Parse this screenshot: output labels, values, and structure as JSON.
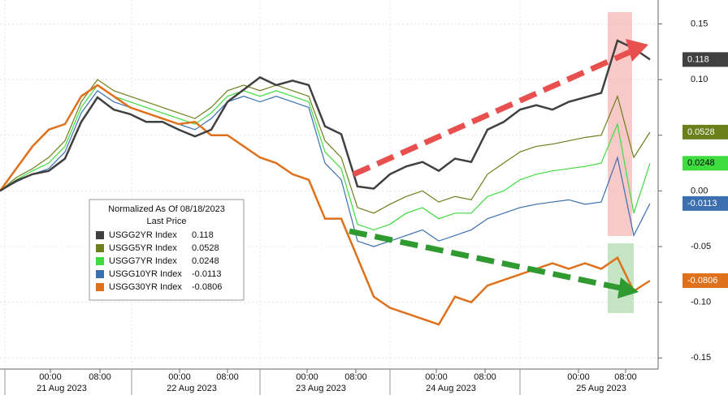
{
  "chart_data": {
    "type": "line",
    "ylim": [
      -0.16,
      0.17
    ],
    "yticks": [
      0.15,
      {
        "value": 0.1,
        "label": "0.10"
      },
      0.05,
      {
        "value": 0,
        "label": "0.00"
      },
      {
        "value": -0.05,
        "label": "-0.05"
      },
      {
        "value": -0.1,
        "label": "-0.10"
      },
      -0.15
    ],
    "xtick_labels": [
      "00:00",
      "08:00",
      "00:00",
      "08:00",
      "00:00",
      "08:00",
      "00:00",
      "08:00",
      "00:00",
      "08:00"
    ],
    "date_labels": [
      "21 Aug 2023",
      "22 Aug 2023",
      "23 Aug 2023",
      "24 Aug 2023",
      "25 Aug 2023"
    ],
    "legend_title": "Normalized As Of 08/18/2023",
    "legend_subtitle": "Last Price",
    "grid": true,
    "series": [
      {
        "name": "USGG2YR Index",
        "color": "#404040",
        "last": 0.118,
        "values": [
          0,
          0.009,
          0.015,
          0.018,
          0.029,
          0.062,
          0.084,
          0.073,
          0.069,
          0.062,
          0.062,
          0.055,
          0.049,
          0.055,
          0.08,
          0.091,
          0.102,
          0.095,
          0.099,
          0.095,
          0.058,
          0.051,
          0.004,
          0.002,
          0.015,
          0.022,
          0.026,
          0.018,
          0.029,
          0.026,
          0.055,
          0.062,
          0.073,
          0.077,
          0.073,
          0.08,
          0.084,
          0.088,
          0.135,
          0.128,
          0.118
        ]
      },
      {
        "name": "USGG5YR Index",
        "color": "#6b7f1a",
        "last": 0.0528,
        "values": [
          0,
          0.012,
          0.02,
          0.03,
          0.045,
          0.08,
          0.1,
          0.09,
          0.085,
          0.08,
          0.075,
          0.07,
          0.065,
          0.075,
          0.09,
          0.095,
          0.09,
          0.095,
          0.09,
          0.085,
          0.045,
          0.03,
          -0.015,
          -0.02,
          -0.012,
          -0.005,
          0,
          -0.01,
          -0.005,
          -0.008,
          0.015,
          0.025,
          0.035,
          0.04,
          0.042,
          0.045,
          0.048,
          0.05,
          0.085,
          0.03,
          0.0528
        ]
      },
      {
        "name": "USGG7YR Index",
        "color": "#3fdc3f",
        "last": 0.0248,
        "values": [
          0,
          0.01,
          0.018,
          0.025,
          0.04,
          0.075,
          0.095,
          0.085,
          0.08,
          0.075,
          0.07,
          0.065,
          0.06,
          0.07,
          0.085,
          0.09,
          0.085,
          0.09,
          0.085,
          0.08,
          0.035,
          0.02,
          -0.03,
          -0.035,
          -0.03,
          -0.02,
          -0.015,
          -0.025,
          -0.02,
          -0.02,
          -0.005,
          0,
          0.01,
          0.015,
          0.018,
          0.02,
          0.022,
          0.025,
          0.06,
          -0.02,
          0.0248
        ]
      },
      {
        "name": "USGG10YR Index",
        "color": "#3b6fb0",
        "last": -0.0113,
        "values": [
          0,
          0.008,
          0.015,
          0.02,
          0.035,
          0.07,
          0.09,
          0.08,
          0.075,
          0.07,
          0.065,
          0.06,
          0.055,
          0.065,
          0.08,
          0.085,
          0.08,
          0.085,
          0.08,
          0.075,
          0.025,
          0.01,
          -0.045,
          -0.05,
          -0.045,
          -0.04,
          -0.035,
          -0.045,
          -0.04,
          -0.035,
          -0.025,
          -0.02,
          -0.015,
          -0.012,
          -0.01,
          -0.008,
          -0.012,
          -0.01,
          0.03,
          -0.04,
          -0.0113
        ]
      },
      {
        "name": "USGG30YR Index",
        "color": "#e0711c",
        "last": -0.0806,
        "values": [
          0,
          0.02,
          0.04,
          0.055,
          0.06,
          0.085,
          0.095,
          0.085,
          0.075,
          0.07,
          0.065,
          0.06,
          0.062,
          0.05,
          0.05,
          0.04,
          0.03,
          0.025,
          0.015,
          0.01,
          -0.025,
          -0.025,
          -0.06,
          -0.095,
          -0.105,
          -0.11,
          -0.115,
          -0.12,
          -0.095,
          -0.1,
          -0.085,
          -0.08,
          -0.075,
          -0.07,
          -0.065,
          -0.07,
          -0.065,
          -0.07,
          -0.06,
          -0.09,
          -0.0806
        ]
      }
    ]
  }
}
